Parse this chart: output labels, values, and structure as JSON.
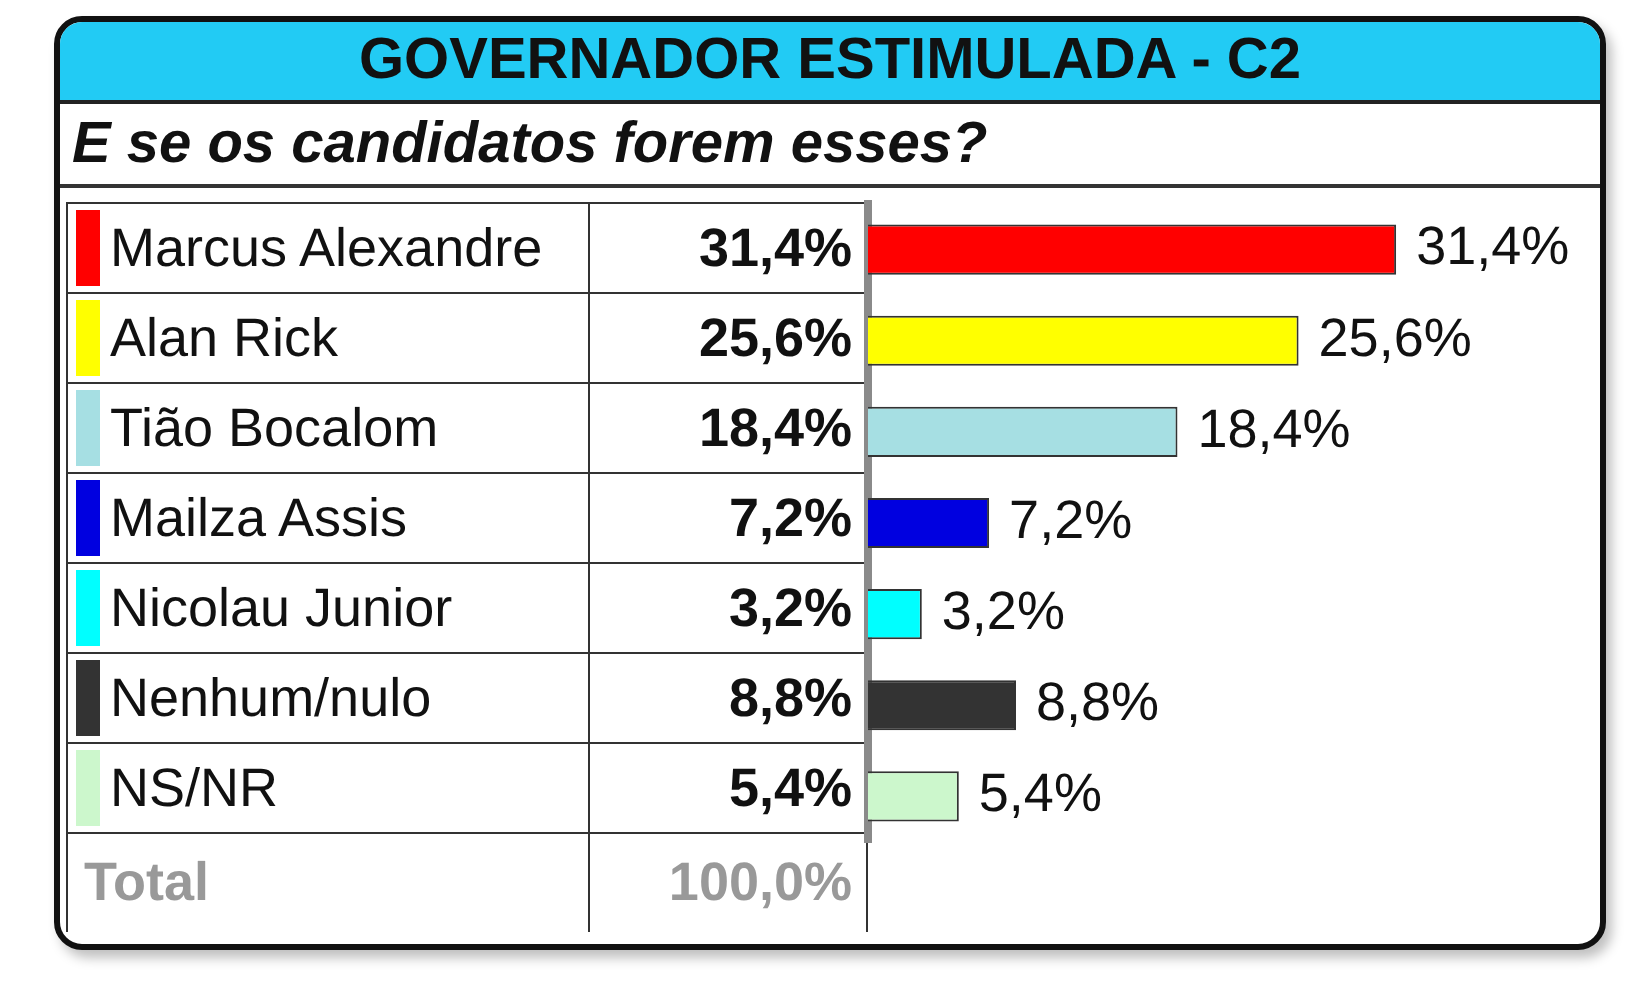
{
  "chart_data": {
    "type": "bar",
    "orientation": "horizontal",
    "title": "GOVERNADOR ESTIMULADA - C2",
    "subtitle": "E se os candidatos forem esses?",
    "categories": [
      "Marcus Alexandre",
      "Alan Rick",
      "Tião Bocalom",
      "Mailza Assis",
      "Nicolau Junior",
      "Nenhum/nulo",
      "NS/NR"
    ],
    "values": [
      31.4,
      25.6,
      18.4,
      7.2,
      3.2,
      8.8,
      5.4
    ],
    "colors": [
      "#ff0000",
      "#ffff00",
      "#a6dfe3",
      "#0000e0",
      "#00ffff",
      "#333333",
      "#ccf7cc"
    ],
    "value_labels": [
      "31,4%",
      "25,6%",
      "18,4%",
      "7,2%",
      "3,2%",
      "8,8%",
      "5,4%"
    ],
    "annotations": [
      "Total",
      "100,0%"
    ],
    "tick_labels": "y"
  }
}
